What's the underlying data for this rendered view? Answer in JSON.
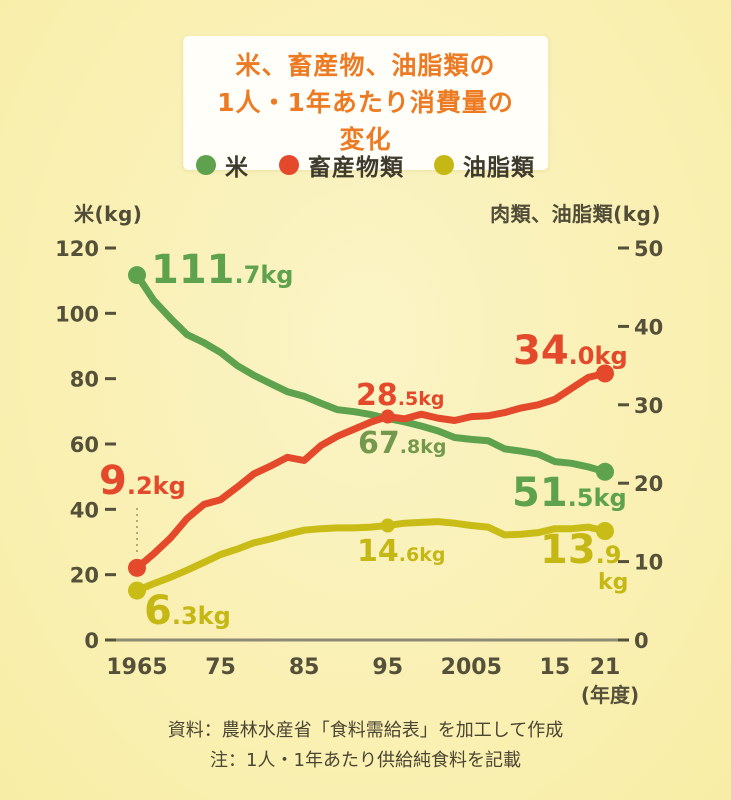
{
  "title": {
    "line1": "米、畜産物、油脂類の",
    "line2": "1人・1年あたり消費量の変化"
  },
  "legend": [
    {
      "label": "米",
      "color": "#5ea24e"
    },
    {
      "label": "畜産物類",
      "color": "#e3492a"
    },
    {
      "label": "油脂類",
      "color": "#c5b815"
    }
  ],
  "axes": {
    "left_title": "米(kg)",
    "right_title": "肉類、油脂類(kg)",
    "x_unit": "(年度)",
    "left_ticks": [
      120,
      100,
      80,
      60,
      40,
      20,
      0
    ],
    "right_ticks": [
      50,
      40,
      30,
      20,
      10,
      0
    ],
    "x_ticks": [
      {
        "year": 1965,
        "label": "1965"
      },
      {
        "year": 1975,
        "label": "75"
      },
      {
        "year": 1985,
        "label": "85"
      },
      {
        "year": 1995,
        "label": "95"
      },
      {
        "year": 2005,
        "label": "2005"
      },
      {
        "year": 2015,
        "label": "15"
      },
      {
        "year": 2021,
        "label": "21"
      }
    ]
  },
  "chart_data": {
    "type": "line",
    "title": "米、畜産物、油脂類の1人・1年あたり消費量の変化",
    "x_label": "年度",
    "left_axis": {
      "label": "米(kg)",
      "ylim": [
        0,
        120
      ]
    },
    "right_axis": {
      "label": "肉類、油脂類(kg)",
      "ylim": [
        0,
        50
      ]
    },
    "x_range": [
      1965,
      2021
    ],
    "x": [
      1965,
      1967,
      1969,
      1971,
      1973,
      1975,
      1977,
      1979,
      1981,
      1983,
      1985,
      1987,
      1989,
      1991,
      1993,
      1995,
      1997,
      1999,
      2001,
      2003,
      2005,
      2007,
      2009,
      2011,
      2013,
      2015,
      2017,
      2019,
      2021
    ],
    "series": [
      {
        "name": "米",
        "axis": "left",
        "color": "#5ea24e",
        "values": [
          111.7,
          104.0,
          98.5,
          93.5,
          91.0,
          88.0,
          84.0,
          81.0,
          78.5,
          76.0,
          74.6,
          72.5,
          70.5,
          69.9,
          69.0,
          67.8,
          66.8,
          65.5,
          64.0,
          62.0,
          61.4,
          61.0,
          58.5,
          57.8,
          56.9,
          54.6,
          54.1,
          53.0,
          51.5
        ],
        "markers": [
          1965,
          2021
        ],
        "key_points": {
          "1965": 111.7,
          "1995": 67.8,
          "2021": 51.5
        }
      },
      {
        "name": "油脂類",
        "axis": "right",
        "color": "#c9bc17",
        "values": [
          6.3,
          7.2,
          8.0,
          8.9,
          9.9,
          10.9,
          11.6,
          12.4,
          12.9,
          13.5,
          14.0,
          14.2,
          14.3,
          14.3,
          14.4,
          14.6,
          14.9,
          15.0,
          15.1,
          14.9,
          14.6,
          14.4,
          13.4,
          13.5,
          13.7,
          14.2,
          14.2,
          14.4,
          13.9
        ],
        "markers": [
          1965,
          1995,
          2021
        ],
        "key_points": {
          "1965": 6.3,
          "1995": 14.6,
          "2021": 13.9
        }
      },
      {
        "name": "畜産物類",
        "axis": "right",
        "color": "#e3492a",
        "values": [
          9.2,
          11.0,
          13.0,
          15.5,
          17.3,
          17.9,
          19.5,
          21.2,
          22.2,
          23.3,
          22.9,
          24.8,
          26.0,
          26.9,
          27.8,
          28.5,
          28.2,
          28.8,
          28.3,
          28.0,
          28.5,
          28.6,
          29.0,
          29.6,
          30.0,
          30.7,
          32.1,
          33.5,
          34.0
        ],
        "markers": [
          1965,
          1995,
          2021
        ],
        "key_points": {
          "1965": 9.2,
          "1995": 28.5,
          "2021": 34.0
        }
      }
    ],
    "labels": {
      "rice_start": {
        "big": "111",
        "small": ".7kg"
      },
      "rice_mid": {
        "big": "67",
        "small": ".8kg"
      },
      "rice_end": {
        "big": "51",
        "small": ".5kg"
      },
      "meat_start": {
        "big": "9",
        "small": ".2kg"
      },
      "meat_mid": {
        "big": "28",
        "small": ".5kg"
      },
      "meat_end": {
        "big": "34",
        "small": ".0kg"
      },
      "oil_start": {
        "big": "6",
        "small": ".3kg"
      },
      "oil_mid": {
        "big": "14",
        "small": ".6kg"
      },
      "oil_end": {
        "big": "13",
        "small": ".9",
        "unit": "kg"
      }
    }
  },
  "footer": {
    "line1": "資料：農林水産省「食料需給表」を加工して作成",
    "line2": "注：1人・1年あたり供給純食料を記載"
  }
}
